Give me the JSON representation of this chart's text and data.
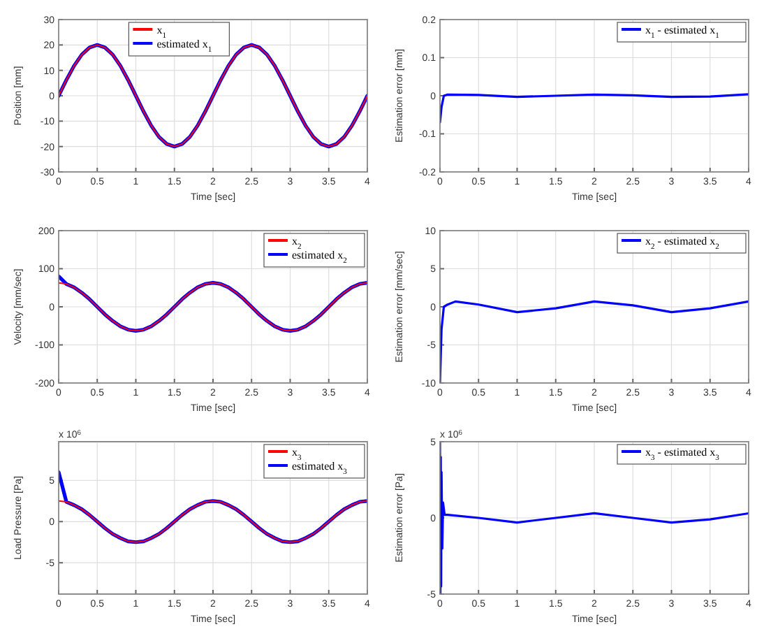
{
  "chart_data": [
    {
      "type": "line",
      "xlabel": "Time [sec]",
      "ylabel": "Position [mm]",
      "xlim": [
        0,
        4
      ],
      "xticks": [
        0,
        0.5,
        1,
        1.5,
        2,
        2.5,
        3,
        3.5,
        4
      ],
      "ylim": [
        -30,
        30
      ],
      "yticks": [
        -30,
        -20,
        -10,
        0,
        10,
        20,
        30
      ],
      "grid": true,
      "legend": "top",
      "line_style": "solid",
      "x": [
        0,
        0.1,
        0.2,
        0.3,
        0.4,
        0.5,
        0.6,
        0.7,
        0.8,
        0.9,
        1,
        1.1,
        1.2,
        1.3,
        1.4,
        1.5,
        1.6,
        1.7,
        1.8,
        1.9,
        2,
        2.1,
        2.2,
        2.3,
        2.4,
        2.5,
        2.6,
        2.7,
        2.8,
        2.9,
        3,
        3.1,
        3.2,
        3.3,
        3.4,
        3.5,
        3.6,
        3.7,
        3.8,
        3.9,
        4
      ],
      "series": [
        {
          "name": "x$_{1}$",
          "color": "#ff0000",
          "values": [
            0,
            6.2,
            11.8,
            16.2,
            19,
            20,
            19,
            16.2,
            11.8,
            6.2,
            0,
            -6.2,
            -11.8,
            -16.2,
            -19,
            -20,
            -19,
            -16.2,
            -11.8,
            -6.2,
            0,
            6.2,
            11.8,
            16.2,
            19,
            20,
            19,
            16.2,
            11.8,
            6.2,
            0,
            -6.2,
            -11.8,
            -16.2,
            -19,
            -20,
            -19,
            -16.2,
            -11.8,
            -6.2,
            0
          ]
        },
        {
          "name": "estimated x$_{1}$",
          "color": "#0000ff",
          "values": [
            0,
            6.2,
            11.8,
            16.2,
            19,
            20,
            19,
            16.2,
            11.8,
            6.2,
            0,
            -6.2,
            -11.8,
            -16.2,
            -19,
            -20,
            -19,
            -16.2,
            -11.8,
            -6.2,
            0,
            6.2,
            11.8,
            16.2,
            19,
            20,
            19,
            16.2,
            11.8,
            6.2,
            0,
            -6.2,
            -11.8,
            -16.2,
            -19,
            -20,
            -19,
            -16.2,
            -11.8,
            -6.2,
            0
          ]
        }
      ]
    },
    {
      "type": "line",
      "xlabel": "Time [sec]",
      "ylabel": "Estimation error [mm]",
      "xlim": [
        0,
        4
      ],
      "xticks": [
        0,
        0.5,
        1,
        1.5,
        2,
        2.5,
        3,
        3.5,
        4
      ],
      "ylim": [
        -0.2,
        0.2
      ],
      "yticks": [
        -0.2,
        -0.1,
        0,
        0.1,
        0.2
      ],
      "grid": true,
      "legend": "top right",
      "line_style": "solid",
      "x": [
        0,
        0.02,
        0.05,
        0.1,
        0.5,
        1,
        1.5,
        2,
        2.5,
        3,
        3.5,
        4
      ],
      "series": [
        {
          "name": "x$_{1}$ - estimated x$_{1}$",
          "color": "#0000ff",
          "values": [
            -0.07,
            -0.03,
            0,
            0.003,
            0.002,
            -0.003,
            0,
            0.003,
            0.001,
            -0.003,
            -0.002,
            0.004
          ]
        }
      ]
    },
    {
      "type": "line",
      "xlabel": "Time [sec]",
      "ylabel": "Velocity [mm/sec]",
      "xlim": [
        0,
        4
      ],
      "xticks": [
        0,
        0.5,
        1,
        1.5,
        2,
        2.5,
        3,
        3.5,
        4
      ],
      "ylim": [
        -200,
        200
      ],
      "yticks": [
        -200,
        -100,
        0,
        100,
        200
      ],
      "grid": true,
      "legend": "top right",
      "line_style": "solid",
      "x": [
        0,
        0.1,
        0.2,
        0.3,
        0.4,
        0.5,
        0.6,
        0.7,
        0.8,
        0.9,
        1,
        1.1,
        1.2,
        1.3,
        1.4,
        1.5,
        1.6,
        1.7,
        1.8,
        1.9,
        2,
        2.1,
        2.2,
        2.3,
        2.4,
        2.5,
        2.6,
        2.7,
        2.8,
        2.9,
        3,
        3.1,
        3.2,
        3.3,
        3.4,
        3.5,
        3.6,
        3.7,
        3.8,
        3.9,
        4
      ],
      "series": [
        {
          "name": "x$_{2}$",
          "color": "#ff0000",
          "values": [
            63,
            60,
            51,
            37,
            20,
            0,
            -20,
            -37,
            -51,
            -60,
            -63,
            -60,
            -51,
            -37,
            -20,
            0,
            20,
            37,
            51,
            60,
            63,
            60,
            51,
            37,
            20,
            0,
            -20,
            -37,
            -51,
            -60,
            -63,
            -60,
            -51,
            -37,
            -20,
            0,
            20,
            37,
            51,
            60,
            63
          ]
        },
        {
          "name": "estimated x$_{2}$",
          "color": "#0000ff",
          "values": [
            80,
            60,
            51,
            37,
            20,
            0,
            -20,
            -37,
            -51,
            -60,
            -63,
            -60,
            -51,
            -37,
            -20,
            0,
            20,
            37,
            51,
            60,
            63,
            60,
            51,
            37,
            20,
            0,
            -20,
            -37,
            -51,
            -60,
            -63,
            -60,
            -51,
            -37,
            -20,
            0,
            20,
            37,
            51,
            60,
            63
          ]
        }
      ]
    },
    {
      "type": "line",
      "xlabel": "Time [sec]",
      "ylabel": "Estimation error [mm/sec]",
      "xlim": [
        0,
        4
      ],
      "xticks": [
        0,
        0.5,
        1,
        1.5,
        2,
        2.5,
        3,
        3.5,
        4
      ],
      "ylim": [
        -10,
        10
      ],
      "yticks": [
        -10,
        -5,
        0,
        5,
        10
      ],
      "grid": true,
      "legend": "top right",
      "line_style": "solid",
      "x": [
        0,
        0.02,
        0.05,
        0.1,
        0.2,
        0.5,
        1,
        1.5,
        2,
        2.5,
        3,
        3.5,
        4
      ],
      "series": [
        {
          "name": "x$_{2}$ - estimated x$_{2}$",
          "color": "#0000ff",
          "values": [
            -10,
            -3,
            0,
            0.3,
            0.7,
            0.3,
            -0.7,
            -0.2,
            0.7,
            0.2,
            -0.7,
            -0.2,
            0.7
          ]
        }
      ]
    },
    {
      "type": "line",
      "xlabel": "Time [sec]",
      "ylabel": "Load Pressure [Pa]",
      "annotations": [
        "x 10$^{6}$"
      ],
      "xlim": [
        0,
        4
      ],
      "xticks": [
        0,
        0.5,
        1,
        1.5,
        2,
        2.5,
        3,
        3.5,
        4
      ],
      "ylim": [
        -8.8,
        9.7
      ],
      "yticks": [
        -5,
        0,
        5
      ],
      "grid": true,
      "legend": "top right",
      "line_style": "solid",
      "x": [
        0,
        0.1,
        0.2,
        0.3,
        0.4,
        0.5,
        0.6,
        0.7,
        0.8,
        0.9,
        1,
        1.1,
        1.2,
        1.3,
        1.4,
        1.5,
        1.6,
        1.7,
        1.8,
        1.9,
        2,
        2.1,
        2.2,
        2.3,
        2.4,
        2.5,
        2.6,
        2.7,
        2.8,
        2.9,
        3,
        3.1,
        3.2,
        3.3,
        3.4,
        3.5,
        3.6,
        3.7,
        3.8,
        3.9,
        4
      ],
      "series": [
        {
          "name": "x$_{3}$",
          "color": "#ff0000",
          "values": [
            2.5,
            2.4,
            2.0,
            1.5,
            0.8,
            0,
            -0.8,
            -1.5,
            -2.0,
            -2.4,
            -2.5,
            -2.4,
            -2.0,
            -1.5,
            -0.8,
            0,
            0.8,
            1.5,
            2.0,
            2.4,
            2.5,
            2.4,
            2.0,
            1.5,
            0.8,
            0,
            -0.8,
            -1.5,
            -2.0,
            -2.4,
            -2.5,
            -2.4,
            -2.0,
            -1.5,
            -0.8,
            0,
            0.8,
            1.5,
            2.0,
            2.4,
            2.5
          ]
        },
        {
          "name": "estimated x$_{3}$",
          "color": "#0000ff",
          "values": [
            6,
            2.4,
            2.0,
            1.5,
            0.8,
            0,
            -0.8,
            -1.5,
            -2.0,
            -2.4,
            -2.5,
            -2.4,
            -2.0,
            -1.5,
            -0.8,
            0,
            0.8,
            1.5,
            2.0,
            2.4,
            2.5,
            2.4,
            2.0,
            1.5,
            0.8,
            0,
            -0.8,
            -1.5,
            -2.0,
            -2.4,
            -2.5,
            -2.4,
            -2.0,
            -1.5,
            -0.8,
            0,
            0.8,
            1.5,
            2.0,
            2.4,
            2.5
          ]
        }
      ]
    },
    {
      "type": "line",
      "xlabel": "Time [sec]",
      "ylabel": "Estimation error [Pa]",
      "annotations": [
        "x 10$^{6}$"
      ],
      "xlim": [
        0,
        4
      ],
      "xticks": [
        0,
        0.5,
        1,
        1.5,
        2,
        2.5,
        3,
        3.5,
        4
      ],
      "ylim": [
        -5,
        5
      ],
      "yticks": [
        -5,
        0,
        5
      ],
      "grid": true,
      "legend": "top right",
      "line_style": "solid",
      "x": [
        0,
        0.005,
        0.01,
        0.015,
        0.02,
        0.03,
        0.04,
        0.06,
        0.1,
        0.5,
        1,
        1.5,
        2,
        2.5,
        3,
        3.5,
        4
      ],
      "series": [
        {
          "name": "x$_{3}$ - estimated x$_{3}$",
          "color": "#0000ff",
          "values": [
            5,
            -5,
            4,
            -4.5,
            3,
            -2,
            1,
            0.2,
            0.2,
            0,
            -0.3,
            0,
            0.3,
            0,
            -0.3,
            -0.1,
            0.3
          ]
        }
      ]
    }
  ]
}
